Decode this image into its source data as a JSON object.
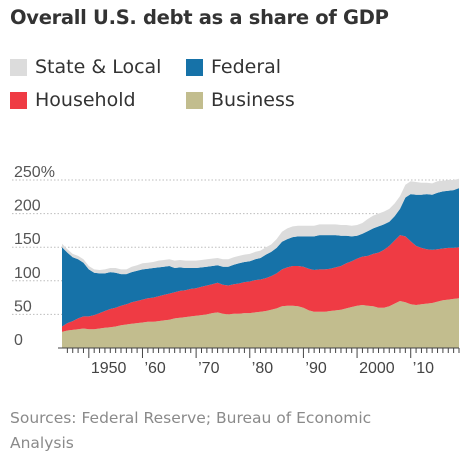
{
  "title": "Overall U.S. debt as a share of GDP",
  "legend": [
    {
      "name": "State & Local",
      "color": "#dcdcdc"
    },
    {
      "name": "Federal",
      "color": "#1672a8"
    },
    {
      "name": "Household",
      "color": "#ef3b44"
    },
    {
      "name": "Business",
      "color": "#c2bd8e"
    }
  ],
  "source": "Sources: Federal Reserve; Bureau of Economic Analysis",
  "chart_data": {
    "type": "area",
    "stacked": true,
    "title": "Overall U.S. debt as a share of GDP",
    "xlabel": "",
    "ylabel": "",
    "xlim": [
      1945,
      2019
    ],
    "ylim": [
      0,
      250
    ],
    "y_ticks": [
      0,
      50,
      100,
      150,
      200,
      250
    ],
    "y_tick_labels": [
      "0",
      "50",
      "100",
      "150",
      "200",
      "250%"
    ],
    "x_ticks": [
      1950,
      1960,
      1970,
      1980,
      1990,
      2000,
      2010
    ],
    "x_tick_labels": [
      "1950",
      "’60",
      "’70",
      "’80",
      "’90",
      "2000",
      "’10"
    ],
    "grid": true,
    "legend_position": "top",
    "x": [
      1945,
      1946,
      1947,
      1948,
      1949,
      1950,
      1951,
      1952,
      1953,
      1954,
      1955,
      1956,
      1957,
      1958,
      1959,
      1960,
      1961,
      1962,
      1963,
      1964,
      1965,
      1966,
      1967,
      1968,
      1969,
      1970,
      1971,
      1972,
      1973,
      1974,
      1975,
      1976,
      1977,
      1978,
      1979,
      1980,
      1981,
      1982,
      1983,
      1984,
      1985,
      1986,
      1987,
      1988,
      1989,
      1990,
      1991,
      1992,
      1993,
      1994,
      1995,
      1996,
      1997,
      1998,
      1999,
      2000,
      2001,
      2002,
      2003,
      2004,
      2005,
      2006,
      2007,
      2008,
      2009,
      2010,
      2011,
      2012,
      2013,
      2014,
      2015,
      2016,
      2017,
      2018,
      2019
    ],
    "series": [
      {
        "name": "Business",
        "color": "#c2bd8e",
        "values": [
          24,
          26,
          27,
          28,
          29,
          28,
          28,
          29,
          30,
          31,
          32,
          34,
          35,
          36,
          37,
          38,
          39,
          39,
          40,
          41,
          42,
          44,
          45,
          46,
          47,
          48,
          49,
          50,
          52,
          53,
          51,
          50,
          51,
          51,
          52,
          52,
          53,
          54,
          55,
          57,
          59,
          62,
          63,
          63,
          62,
          60,
          56,
          54,
          54,
          54,
          55,
          56,
          57,
          59,
          61,
          63,
          64,
          63,
          62,
          60,
          60,
          62,
          66,
          70,
          68,
          65,
          64,
          65,
          66,
          67,
          69,
          71,
          72,
          73,
          74
        ]
      },
      {
        "name": "Household",
        "color": "#ef3b44",
        "values": [
          8,
          11,
          13,
          16,
          18,
          19,
          21,
          23,
          25,
          27,
          28,
          29,
          30,
          32,
          33,
          34,
          35,
          36,
          37,
          38,
          39,
          39,
          40,
          40,
          41,
          41,
          42,
          43,
          43,
          44,
          43,
          43,
          44,
          45,
          46,
          47,
          48,
          48,
          49,
          50,
          52,
          55,
          57,
          59,
          60,
          61,
          62,
          62,
          63,
          63,
          63,
          64,
          65,
          67,
          68,
          70,
          72,
          74,
          78,
          82,
          86,
          90,
          94,
          98,
          98,
          94,
          88,
          84,
          81,
          79,
          78,
          77,
          77,
          76,
          76
        ]
      },
      {
        "name": "Federal",
        "color": "#1672a8",
        "values": [
          118,
          105,
          95,
          88,
          80,
          70,
          63,
          59,
          56,
          55,
          52,
          47,
          45,
          45,
          45,
          45,
          44,
          44,
          43,
          42,
          41,
          36,
          35,
          33,
          31,
          30,
          29,
          28,
          27,
          26,
          27,
          28,
          29,
          30,
          30,
          30,
          31,
          32,
          35,
          36,
          38,
          41,
          42,
          43,
          44,
          45,
          48,
          50,
          51,
          51,
          50,
          48,
          45,
          41,
          37,
          34,
          34,
          37,
          38,
          39,
          38,
          36,
          36,
          39,
          58,
          70,
          76,
          79,
          82,
          82,
          84,
          85,
          85,
          86,
          88
        ]
      },
      {
        "name": "State & Local",
        "color": "#dcdcdc",
        "values": [
          5,
          5,
          5,
          5,
          5,
          5,
          5,
          5,
          6,
          6,
          7,
          7,
          7,
          8,
          8,
          9,
          9,
          9,
          10,
          10,
          10,
          11,
          11,
          11,
          11,
          11,
          11,
          11,
          11,
          11,
          11,
          11,
          11,
          11,
          11,
          11,
          11,
          11,
          11,
          11,
          13,
          15,
          16,
          16,
          16,
          16,
          16,
          16,
          16,
          16,
          16,
          16,
          16,
          16,
          16,
          16,
          16,
          18,
          19,
          19,
          19,
          19,
          19,
          19,
          19,
          19,
          19,
          18,
          17,
          17,
          17,
          16,
          16,
          15,
          14
        ]
      }
    ]
  }
}
